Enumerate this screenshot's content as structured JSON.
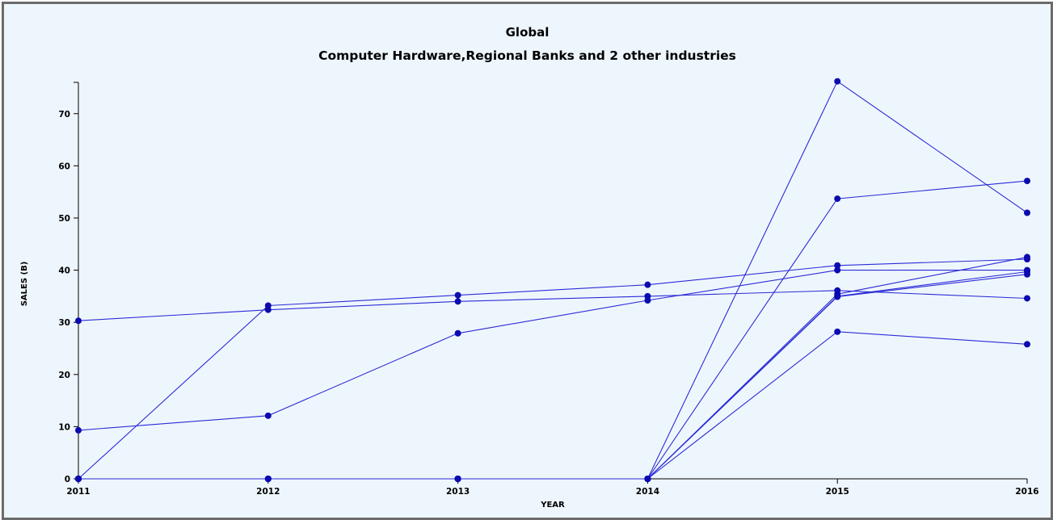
{
  "chart_data": {
    "type": "line",
    "title": "Global",
    "subtitle": "Computer Hardware,Regional Banks and 2 other industries",
    "xlabel": "YEAR",
    "ylabel": "SALES (B)",
    "x": [
      2011,
      2012,
      2013,
      2014,
      2015,
      2016
    ],
    "xticks": [
      "2011",
      "2012",
      "2013",
      "2014",
      "2015",
      "2016"
    ],
    "yticks": [
      "0",
      "10",
      "20",
      "30",
      "40",
      "50",
      "60",
      "70"
    ],
    "ylim": [
      0,
      76
    ],
    "grid": false,
    "line_color": "#2b2bd6",
    "marker_color": "#0b0bb0",
    "axis_color": "#000000",
    "series": [
      {
        "values": [
          30.3,
          32.4,
          34.0,
          35.0,
          36.1,
          34.6
        ]
      },
      {
        "values": [
          0,
          33.2,
          35.2,
          37.2,
          40.9,
          42.1
        ]
      },
      {
        "values": [
          9.3,
          12.1,
          27.9,
          34.2,
          40.0,
          40.0
        ]
      },
      {
        "values": [
          0,
          0,
          0,
          0,
          76.2,
          51.0
        ]
      },
      {
        "values": [
          0,
          0,
          0,
          0,
          53.7,
          57.1
        ]
      },
      {
        "values": [
          0,
          0,
          0,
          0,
          35.4,
          42.5
        ]
      },
      {
        "values": [
          0,
          0,
          0,
          0,
          35.0,
          39.7
        ]
      },
      {
        "values": [
          0,
          0,
          0,
          0,
          34.9,
          39.2
        ]
      },
      {
        "values": [
          0,
          0,
          0,
          0,
          28.2,
          25.8
        ]
      }
    ]
  }
}
